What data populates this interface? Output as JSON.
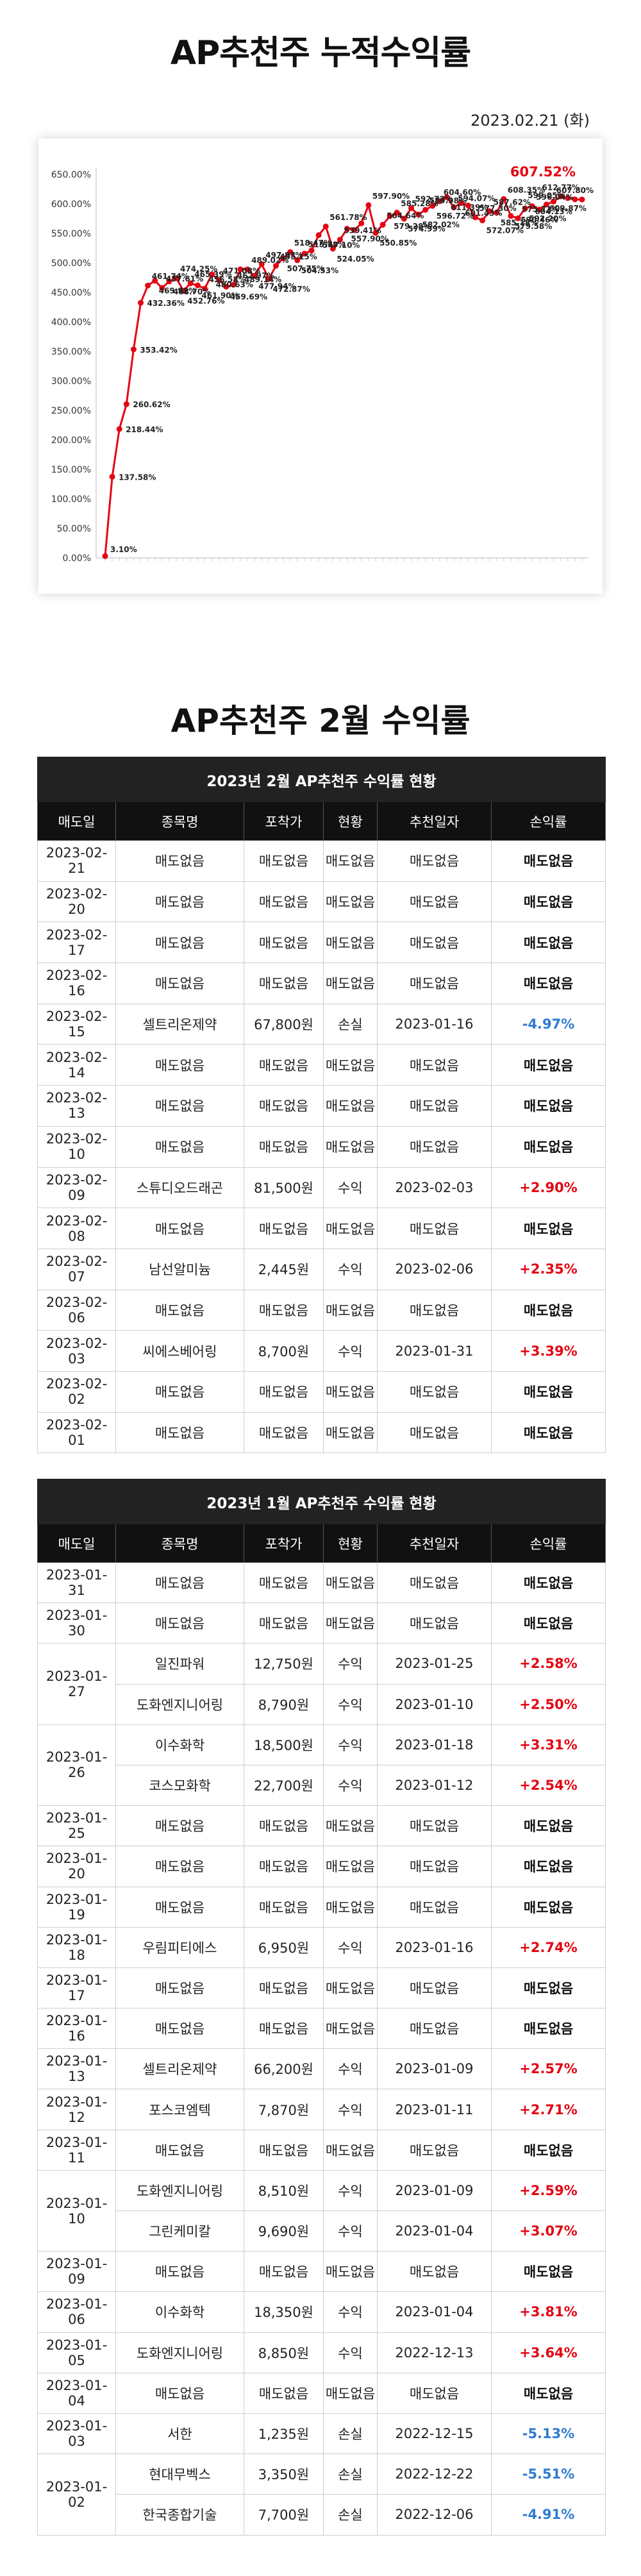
{
  "title": "AP추천주 누적수익률",
  "date": "2023.02.21 (화)",
  "chart_data": {
    "type": "line",
    "title": "",
    "ylim": [
      0,
      650
    ],
    "yticks": [
      "0.00%",
      "50.00%",
      "100.00%",
      "150.00%",
      "200.00%",
      "250.00%",
      "300.00%",
      "350.00%",
      "400.00%",
      "450.00%",
      "500.00%",
      "550.00%",
      "600.00%",
      "650.00%"
    ],
    "color": "#e30613",
    "values": [
      3.1,
      137.58,
      218.44,
      260.62,
      353.42,
      432.36,
      461.74,
      469.92,
      457.61,
      468.7,
      474.25,
      452.76,
      465.39,
      461.9,
      456.58,
      480.63,
      471.08,
      459.69,
      462.97,
      489.14,
      489.02,
      477.94,
      497.87,
      472.87,
      495.15,
      507.75,
      518.47,
      504.53,
      515.78,
      521.0,
      547.1,
      561.78,
      524.05,
      539.41,
      557.9,
      555.9,
      567.0,
      597.9,
      550.85,
      564.64,
      579.28,
      585.28,
      574.99,
      592.72,
      582.02,
      589.98,
      596.72,
      604.6,
      611.39,
      594.07,
      601.43,
      597.3,
      577.3,
      572.07,
      587.62,
      585.18,
      608.35,
      579.58,
      575.71,
      592.2,
      596.04,
      590.46,
      599.05,
      604.13,
      612.77,
      609.87,
      607.8,
      607.52
    ],
    "data_labels": [
      {
        "i": 0,
        "label": "3.10%"
      },
      {
        "i": 1,
        "label": "137.58%"
      },
      {
        "i": 2,
        "label": "218.44%"
      },
      {
        "i": 3,
        "label": "260.62%"
      },
      {
        "i": 4,
        "label": "353.42%"
      },
      {
        "i": 5,
        "label": "432.36%"
      },
      {
        "i": 6,
        "label": "461.74%"
      },
      {
        "i": 7,
        "label": "469.92%"
      },
      {
        "i": 8,
        "label": "457.61%"
      },
      {
        "i": 9,
        "label": "468.70%"
      },
      {
        "i": 10,
        "label": "474.25%"
      },
      {
        "i": 11,
        "label": "452.76%"
      },
      {
        "i": 12,
        "label": "465.39%"
      },
      {
        "i": 13,
        "label": "461.90%"
      },
      {
        "i": 14,
        "label": "456.58%"
      },
      {
        "i": 15,
        "label": "480.63%"
      },
      {
        "i": 16,
        "label": "471.08%"
      },
      {
        "i": 17,
        "label": "459.69%"
      },
      {
        "i": 18,
        "label": "462.97%"
      },
      {
        "i": 19,
        "label": "489.14%"
      },
      {
        "i": 20,
        "label": "489.02%"
      },
      {
        "i": 21,
        "label": "477.94%"
      },
      {
        "i": 22,
        "label": "497.87%"
      },
      {
        "i": 23,
        "label": "472.87%"
      },
      {
        "i": 24,
        "label": "495.15%"
      },
      {
        "i": 25,
        "label": "507.75%"
      },
      {
        "i": 26,
        "label": "518.47%"
      },
      {
        "i": 27,
        "label": "504.53%"
      },
      {
        "i": 28,
        "label": "515.78%"
      },
      {
        "i": 30,
        "label": "547.10%"
      },
      {
        "i": 31,
        "label": "561.78%"
      },
      {
        "i": 32,
        "label": "524.05%"
      },
      {
        "i": 33,
        "label": "539.41%"
      },
      {
        "i": 34,
        "label": "557.90%"
      },
      {
        "i": 37,
        "label": "597.90%"
      },
      {
        "i": 38,
        "label": "550.85%"
      },
      {
        "i": 39,
        "label": "564.64%"
      },
      {
        "i": 40,
        "label": "579.28%"
      },
      {
        "i": 41,
        "label": "585.28%"
      },
      {
        "i": 42,
        "label": "574.99%"
      },
      {
        "i": 43,
        "label": "592.72%"
      },
      {
        "i": 44,
        "label": "582.02%"
      },
      {
        "i": 45,
        "label": "589.98%"
      },
      {
        "i": 46,
        "label": "596.72%"
      },
      {
        "i": 47,
        "label": "604.60%"
      },
      {
        "i": 48,
        "label": "611.39%"
      },
      {
        "i": 49,
        "label": "594.07%"
      },
      {
        "i": 50,
        "label": "601.43%"
      },
      {
        "i": 52,
        "label": "577.30%"
      },
      {
        "i": 53,
        "label": "572.07%"
      },
      {
        "i": 54,
        "label": "587.62%"
      },
      {
        "i": 55,
        "label": "585.18%"
      },
      {
        "i": 56,
        "label": "608.35%"
      },
      {
        "i": 57,
        "label": "579.58%"
      },
      {
        "i": 58,
        "label": "575.71%"
      },
      {
        "i": 59,
        "label": "592.20%"
      },
      {
        "i": 60,
        "label": "596.04%"
      },
      {
        "i": 61,
        "label": "590.46%"
      },
      {
        "i": 62,
        "label": "599.05%"
      },
      {
        "i": 63,
        "label": "604.13%"
      },
      {
        "i": 64,
        "label": "612.77%"
      },
      {
        "i": 65,
        "label": "609.87%"
      },
      {
        "i": 66,
        "label": "607.80%"
      }
    ],
    "last_label": "607.52%",
    "grid": false,
    "legend": "none"
  },
  "section2_title": "AP추천주 2월 수익률",
  "headers": [
    "매도일",
    "종목명",
    "포착가",
    "현황",
    "추천일자",
    "손익률"
  ],
  "feb": {
    "caption": "2023년 2월 AP추천주 수익률 현황",
    "rows": [
      {
        "d": "2023-02-21",
        "n": "매도없음",
        "p": "매도없음",
        "s": "매도없음",
        "r": "매도없음",
        "pl": "매도없음",
        "t": "none"
      },
      {
        "d": "2023-02-20",
        "n": "매도없음",
        "p": "매도없음",
        "s": "매도없음",
        "r": "매도없음",
        "pl": "매도없음",
        "t": "none"
      },
      {
        "d": "2023-02-17",
        "n": "매도없음",
        "p": "매도없음",
        "s": "매도없음",
        "r": "매도없음",
        "pl": "매도없음",
        "t": "none"
      },
      {
        "d": "2023-02-16",
        "n": "매도없음",
        "p": "매도없음",
        "s": "매도없음",
        "r": "매도없음",
        "pl": "매도없음",
        "t": "none"
      },
      {
        "d": "2023-02-15",
        "n": "셀트리온제약",
        "p": "67,800원",
        "s": "손실",
        "r": "2023-01-16",
        "pl": "-4.97%",
        "t": "neg"
      },
      {
        "d": "2023-02-14",
        "n": "매도없음",
        "p": "매도없음",
        "s": "매도없음",
        "r": "매도없음",
        "pl": "매도없음",
        "t": "none"
      },
      {
        "d": "2023-02-13",
        "n": "매도없음",
        "p": "매도없음",
        "s": "매도없음",
        "r": "매도없음",
        "pl": "매도없음",
        "t": "none"
      },
      {
        "d": "2023-02-10",
        "n": "매도없음",
        "p": "매도없음",
        "s": "매도없음",
        "r": "매도없음",
        "pl": "매도없음",
        "t": "none"
      },
      {
        "d": "2023-02-09",
        "n": "스튜디오드래곤",
        "p": "81,500원",
        "s": "수익",
        "r": "2023-02-03",
        "pl": "+2.90%",
        "t": "pos"
      },
      {
        "d": "2023-02-08",
        "n": "매도없음",
        "p": "매도없음",
        "s": "매도없음",
        "r": "매도없음",
        "pl": "매도없음",
        "t": "none"
      },
      {
        "d": "2023-02-07",
        "n": "남선알미늄",
        "p": "2,445원",
        "s": "수익",
        "r": "2023-02-06",
        "pl": "+2.35%",
        "t": "pos"
      },
      {
        "d": "2023-02-06",
        "n": "매도없음",
        "p": "매도없음",
        "s": "매도없음",
        "r": "매도없음",
        "pl": "매도없음",
        "t": "none"
      },
      {
        "d": "2023-02-03",
        "n": "씨에스베어링",
        "p": "8,700원",
        "s": "수익",
        "r": "2023-01-31",
        "pl": "+3.39%",
        "t": "pos"
      },
      {
        "d": "2023-02-02",
        "n": "매도없음",
        "p": "매도없음",
        "s": "매도없음",
        "r": "매도없음",
        "pl": "매도없음",
        "t": "none"
      },
      {
        "d": "2023-02-01",
        "n": "매도없음",
        "p": "매도없음",
        "s": "매도없음",
        "r": "매도없음",
        "pl": "매도없음",
        "t": "none"
      }
    ]
  },
  "jan": {
    "caption": "2023년 1월 AP추천주 수익률 현황",
    "rows": [
      {
        "d": "2023-01-31",
        "n": "매도없음",
        "p": "매도없음",
        "s": "매도없음",
        "r": "매도없음",
        "pl": "매도없음",
        "t": "none"
      },
      {
        "d": "2023-01-30",
        "n": "매도없음",
        "p": "매도없음",
        "s": "매도없음",
        "r": "매도없음",
        "pl": "매도없음",
        "t": "none"
      },
      {
        "d": "2023-01-27",
        "span": 2,
        "n": "일진파워",
        "p": "12,750원",
        "s": "수익",
        "r": "2023-01-25",
        "pl": "+2.58%",
        "t": "pos"
      },
      {
        "n": "도화엔지니어링",
        "p": "8,790원",
        "s": "수익",
        "r": "2023-01-10",
        "pl": "+2.50%",
        "t": "pos"
      },
      {
        "d": "2023-01-26",
        "span": 2,
        "n": "이수화학",
        "p": "18,500원",
        "s": "수익",
        "r": "2023-01-18",
        "pl": "+3.31%",
        "t": "pos"
      },
      {
        "n": "코스모화학",
        "p": "22,700원",
        "s": "수익",
        "r": "2023-01-12",
        "pl": "+2.54%",
        "t": "pos"
      },
      {
        "d": "2023-01-25",
        "n": "매도없음",
        "p": "매도없음",
        "s": "매도없음",
        "r": "매도없음",
        "pl": "매도없음",
        "t": "none"
      },
      {
        "d": "2023-01-20",
        "n": "매도없음",
        "p": "매도없음",
        "s": "매도없음",
        "r": "매도없음",
        "pl": "매도없음",
        "t": "none"
      },
      {
        "d": "2023-01-19",
        "n": "매도없음",
        "p": "매도없음",
        "s": "매도없음",
        "r": "매도없음",
        "pl": "매도없음",
        "t": "none"
      },
      {
        "d": "2023-01-18",
        "n": "우림피티에스",
        "p": "6,950원",
        "s": "수익",
        "r": "2023-01-16",
        "pl": "+2.74%",
        "t": "pos"
      },
      {
        "d": "2023-01-17",
        "n": "매도없음",
        "p": "매도없음",
        "s": "매도없음",
        "r": "매도없음",
        "pl": "매도없음",
        "t": "none"
      },
      {
        "d": "2023-01-16",
        "n": "매도없음",
        "p": "매도없음",
        "s": "매도없음",
        "r": "매도없음",
        "pl": "매도없음",
        "t": "none"
      },
      {
        "d": "2023-01-13",
        "n": "셀트리온제약",
        "p": "66,200원",
        "s": "수익",
        "r": "2023-01-09",
        "pl": "+2.57%",
        "t": "pos"
      },
      {
        "d": "2023-01-12",
        "n": "포스코엠텍",
        "p": "7,870원",
        "s": "수익",
        "r": "2023-01-11",
        "pl": "+2.71%",
        "t": "pos"
      },
      {
        "d": "2023-01-11",
        "n": "매도없음",
        "p": "매도없음",
        "s": "매도없음",
        "r": "매도없음",
        "pl": "매도없음",
        "t": "none"
      },
      {
        "d": "2023-01-10",
        "span": 2,
        "n": "도화엔지니어링",
        "p": "8,510원",
        "s": "수익",
        "r": "2023-01-09",
        "pl": "+2.59%",
        "t": "pos"
      },
      {
        "n": "그린케미칼",
        "p": "9,690원",
        "s": "수익",
        "r": "2023-01-04",
        "pl": "+3.07%",
        "t": "pos"
      },
      {
        "d": "2023-01-09",
        "n": "매도없음",
        "p": "매도없음",
        "s": "매도없음",
        "r": "매도없음",
        "pl": "매도없음",
        "t": "none"
      },
      {
        "d": "2023-01-06",
        "n": "이수화학",
        "p": "18,350원",
        "s": "수익",
        "r": "2023-01-04",
        "pl": "+3.81%",
        "t": "pos"
      },
      {
        "d": "2023-01-05",
        "n": "도화엔지니어링",
        "p": "8,850원",
        "s": "수익",
        "r": "2022-12-13",
        "pl": "+3.64%",
        "t": "pos"
      },
      {
        "d": "2023-01-04",
        "n": "매도없음",
        "p": "매도없음",
        "s": "매도없음",
        "r": "매도없음",
        "pl": "매도없음",
        "t": "none"
      },
      {
        "d": "2023-01-03",
        "n": "서한",
        "p": "1,235원",
        "s": "손실",
        "r": "2022-12-15",
        "pl": "-5.13%",
        "t": "neg"
      },
      {
        "d": "2023-01-02",
        "span": 2,
        "n": "현대무벡스",
        "p": "3,350원",
        "s": "손실",
        "r": "2022-12-22",
        "pl": "-5.51%",
        "t": "neg"
      },
      {
        "n": "한국종합기술",
        "p": "7,700원",
        "s": "손실",
        "r": "2022-12-06",
        "pl": "-4.91%",
        "t": "neg"
      }
    ]
  }
}
